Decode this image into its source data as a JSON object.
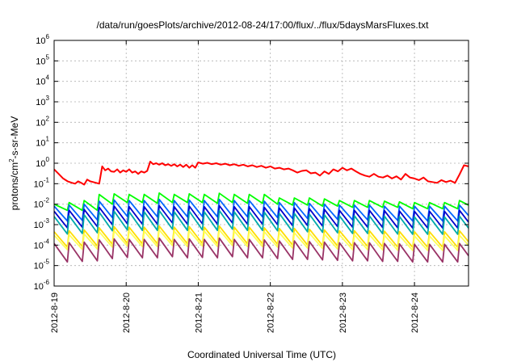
{
  "chart_data": {
    "type": "line",
    "title": "/data/run/goesPlots/archive/2012-08-24/17:00/flux/../flux/5daysMarsFluxes.txt",
    "xlabel": "Coordinated Universal Time (UTC)",
    "ylabel": "protons/cm2-s-sr-MeV",
    "ylabel_parts": {
      "pre": "protons/cm",
      "sup": "2",
      "post": "-s-sr-MeV"
    },
    "y_scale": "log",
    "ylim": [
      1e-06,
      1000000.0
    ],
    "y_ticks": [
      {
        "exp": -6,
        "base": "10",
        "sup": "-6"
      },
      {
        "exp": -5,
        "base": "10",
        "sup": "-5"
      },
      {
        "exp": -4,
        "base": "10",
        "sup": "-4"
      },
      {
        "exp": -3,
        "base": "10",
        "sup": "-3"
      },
      {
        "exp": -2,
        "base": "10",
        "sup": "-2"
      },
      {
        "exp": -1,
        "base": "10",
        "sup": "-1"
      },
      {
        "exp": 0,
        "base": "10",
        "sup": "0"
      },
      {
        "exp": 1,
        "base": "10",
        "sup": "1"
      },
      {
        "exp": 2,
        "base": "10",
        "sup": "2"
      },
      {
        "exp": 3,
        "base": "10",
        "sup": "3"
      },
      {
        "exp": 4,
        "base": "10",
        "sup": "4"
      },
      {
        "exp": 5,
        "base": "10",
        "sup": "5"
      },
      {
        "exp": 6,
        "base": "10",
        "sup": "6"
      }
    ],
    "xlim": [
      "2012-08-19T00:00",
      "2012-08-24T18:00"
    ],
    "x_ticks": [
      "2012-8-19",
      "2012-8-20",
      "2012-8-21",
      "2012-8-22",
      "2012-8-23",
      "2012-8-24"
    ],
    "grid": true,
    "legend": "none",
    "series": [
      {
        "color": "#ff0000",
        "sawtooth": false,
        "times": [
          "2012-08-19T00:00",
          "2012-08-19T01:30",
          "2012-08-19T03:00",
          "2012-08-19T04:30",
          "2012-08-19T06:00",
          "2012-08-19T07:00",
          "2012-08-19T08:00",
          "2012-08-19T09:00",
          "2012-08-19T10:00",
          "2012-08-19T11:00",
          "2012-08-19T12:00",
          "2012-08-19T13:00",
          "2012-08-19T14:00",
          "2012-08-19T15:00",
          "2012-08-19T16:00",
          "2012-08-19T17:00",
          "2012-08-19T18:00",
          "2012-08-19T19:00",
          "2012-08-19T20:00",
          "2012-08-19T21:00",
          "2012-08-19T22:00",
          "2012-08-19T23:00",
          "2012-08-20T00:00",
          "2012-08-20T01:00",
          "2012-08-20T02:00",
          "2012-08-20T03:00",
          "2012-08-20T04:00",
          "2012-08-20T05:00",
          "2012-08-20T06:00",
          "2012-08-20T07:00",
          "2012-08-20T08:00",
          "2012-08-20T09:00",
          "2012-08-20T10:00",
          "2012-08-20T11:00",
          "2012-08-20T12:00",
          "2012-08-20T13:00",
          "2012-08-20T14:00",
          "2012-08-20T15:00",
          "2012-08-20T16:00",
          "2012-08-20T17:00",
          "2012-08-20T18:00",
          "2012-08-20T19:00",
          "2012-08-20T20:00",
          "2012-08-20T21:00",
          "2012-08-20T22:00",
          "2012-08-20T23:00",
          "2012-08-21T00:00",
          "2012-08-21T01:30",
          "2012-08-21T03:00",
          "2012-08-21T04:30",
          "2012-08-21T06:00",
          "2012-08-21T07:30",
          "2012-08-21T09:00",
          "2012-08-21T10:30",
          "2012-08-21T12:00",
          "2012-08-21T13:30",
          "2012-08-21T15:00",
          "2012-08-21T16:30",
          "2012-08-21T18:00",
          "2012-08-21T19:30",
          "2012-08-21T21:00",
          "2012-08-21T22:30",
          "2012-08-22T00:00",
          "2012-08-22T01:30",
          "2012-08-22T03:00",
          "2012-08-22T04:30",
          "2012-08-22T06:00",
          "2012-08-22T07:30",
          "2012-08-22T09:00",
          "2012-08-22T10:30",
          "2012-08-22T12:00",
          "2012-08-22T13:30",
          "2012-08-22T15:00",
          "2012-08-22T16:30",
          "2012-08-22T18:00",
          "2012-08-22T19:30",
          "2012-08-22T21:00",
          "2012-08-22T22:30",
          "2012-08-23T00:00",
          "2012-08-23T01:30",
          "2012-08-23T03:00",
          "2012-08-23T04:30",
          "2012-08-23T06:00",
          "2012-08-23T07:30",
          "2012-08-23T09:00",
          "2012-08-23T10:30",
          "2012-08-23T12:00",
          "2012-08-23T13:30",
          "2012-08-23T15:00",
          "2012-08-23T16:30",
          "2012-08-23T18:00",
          "2012-08-23T19:30",
          "2012-08-23T21:00",
          "2012-08-23T22:30",
          "2012-08-24T00:00",
          "2012-08-24T01:30",
          "2012-08-24T03:00",
          "2012-08-24T04:30",
          "2012-08-24T06:00",
          "2012-08-24T07:30",
          "2012-08-24T09:00",
          "2012-08-24T10:30",
          "2012-08-24T12:00",
          "2012-08-24T13:30",
          "2012-08-24T15:00",
          "2012-08-24T16:30",
          "2012-08-24T18:00"
        ],
        "values": [
          0.5,
          0.3,
          0.18,
          0.13,
          0.11,
          0.1,
          0.13,
          0.11,
          0.09,
          0.16,
          0.13,
          0.12,
          0.11,
          0.1,
          0.7,
          0.45,
          0.55,
          0.4,
          0.38,
          0.5,
          0.35,
          0.45,
          0.38,
          0.5,
          0.35,
          0.4,
          0.3,
          0.4,
          0.35,
          0.42,
          1.2,
          0.9,
          1.0,
          0.85,
          1.0,
          0.8,
          0.9,
          0.75,
          0.9,
          0.7,
          0.85,
          0.65,
          0.85,
          0.6,
          0.8,
          0.6,
          1.1,
          0.95,
          1.05,
          0.9,
          1.0,
          0.85,
          0.95,
          0.8,
          0.9,
          0.75,
          0.85,
          0.7,
          0.8,
          0.65,
          0.75,
          0.6,
          0.7,
          0.55,
          0.6,
          0.5,
          0.55,
          0.45,
          0.35,
          0.42,
          0.45,
          0.32,
          0.35,
          0.25,
          0.4,
          0.3,
          0.5,
          0.4,
          0.6,
          0.45,
          0.55,
          0.4,
          0.3,
          0.25,
          0.22,
          0.3,
          0.22,
          0.2,
          0.25,
          0.18,
          0.23,
          0.16,
          0.3,
          0.2,
          0.18,
          0.15,
          0.2,
          0.13,
          0.12,
          0.11,
          0.15,
          0.12,
          0.14,
          0.11,
          0.28,
          0.8,
          0.7
        ]
      },
      {
        "color": "#00ff00",
        "sawtooth": true,
        "peaks": [
          0.01,
          0.012,
          0.015,
          0.03,
          0.032,
          0.03,
          0.03,
          0.035,
          0.03,
          0.032,
          0.03,
          0.034,
          0.03,
          0.03,
          0.03,
          0.02,
          0.02,
          0.02,
          0.018,
          0.015,
          0.015,
          0.015,
          0.014,
          0.013,
          0.012,
          0.012,
          0.012,
          0.015,
          0.02
        ],
        "troughs": [
          0.005,
          0.005,
          0.005,
          0.01,
          0.012,
          0.012,
          0.011,
          0.012,
          0.012,
          0.012,
          0.011,
          0.012,
          0.011,
          0.011,
          0.01,
          0.009,
          0.009,
          0.008,
          0.008,
          0.007,
          0.007,
          0.007,
          0.007,
          0.006,
          0.006,
          0.006,
          0.006,
          0.007,
          0.008
        ]
      },
      {
        "color": "#0066ff",
        "sawtooth": true,
        "peaks": [
          0.008,
          0.009,
          0.01,
          0.014,
          0.016,
          0.015,
          0.015,
          0.017,
          0.015,
          0.016,
          0.015,
          0.017,
          0.015,
          0.015,
          0.014,
          0.012,
          0.012,
          0.011,
          0.01,
          0.009,
          0.009,
          0.009,
          0.008,
          0.008,
          0.008,
          0.008,
          0.008,
          0.009,
          0.01
        ],
        "troughs": [
          0.0015,
          0.0016,
          0.0017,
          0.0022,
          0.0025,
          0.0024,
          0.0024,
          0.0026,
          0.0024,
          0.0025,
          0.0024,
          0.0026,
          0.0024,
          0.0024,
          0.0022,
          0.002,
          0.002,
          0.0019,
          0.0018,
          0.0017,
          0.0017,
          0.0016,
          0.0016,
          0.0015,
          0.0015,
          0.0015,
          0.0015,
          0.0016,
          0.0018
        ]
      },
      {
        "color": "#0000cc",
        "sawtooth": true,
        "peaks": [
          0.0045,
          0.005,
          0.0055,
          0.007,
          0.008,
          0.0075,
          0.0075,
          0.0085,
          0.0075,
          0.008,
          0.0075,
          0.0085,
          0.0075,
          0.0075,
          0.007,
          0.0065,
          0.0065,
          0.006,
          0.0055,
          0.005,
          0.005,
          0.005,
          0.0048,
          0.0046,
          0.0045,
          0.0045,
          0.0045,
          0.005,
          0.0055
        ],
        "troughs": [
          0.0007,
          0.00075,
          0.0008,
          0.001,
          0.0011,
          0.00105,
          0.00105,
          0.0012,
          0.00105,
          0.0011,
          0.00105,
          0.0012,
          0.00105,
          0.00105,
          0.001,
          0.0009,
          0.0009,
          0.00085,
          0.0008,
          0.00075,
          0.00075,
          0.00072,
          0.0007,
          0.00068,
          0.00068,
          0.00068,
          0.00068,
          0.00072,
          0.0008
        ]
      },
      {
        "color": "#00aaaa",
        "sawtooth": true,
        "peaks": [
          0.0025,
          0.0027,
          0.003,
          0.004,
          0.0045,
          0.0042,
          0.0042,
          0.0048,
          0.0042,
          0.0045,
          0.0042,
          0.0048,
          0.0042,
          0.0042,
          0.004,
          0.0035,
          0.0035,
          0.0032,
          0.003,
          0.0027,
          0.0027,
          0.0027,
          0.0026,
          0.0025,
          0.0024,
          0.0024,
          0.0024,
          0.0026,
          0.003
        ],
        "troughs": [
          0.00035,
          0.00037,
          0.0004,
          0.0005,
          0.00055,
          0.00052,
          0.00052,
          0.0006,
          0.00052,
          0.00055,
          0.00052,
          0.0006,
          0.00052,
          0.00052,
          0.0005,
          0.00045,
          0.00045,
          0.00042,
          0.0004,
          0.00037,
          0.00037,
          0.00036,
          0.00035,
          0.00034,
          0.00034,
          0.00034,
          0.00034,
          0.00036,
          0.0004
        ]
      },
      {
        "color": "#ffdd00",
        "sawtooth": true,
        "peaks": [
          0.00045,
          0.0005,
          0.00055,
          0.0007,
          0.0008,
          0.00075,
          0.00075,
          0.00085,
          0.00075,
          0.0008,
          0.00075,
          0.00085,
          0.00075,
          0.00075,
          0.0007,
          0.00065,
          0.00065,
          0.0006,
          0.00055,
          0.0005,
          0.0005,
          0.0005,
          0.00048,
          0.00046,
          0.00045,
          0.00045,
          0.00045,
          0.0005,
          0.00055
        ],
        "troughs": [
          8e-05,
          8.5e-05,
          9e-05,
          0.00011,
          0.00012,
          0.000115,
          0.000115,
          0.00013,
          0.000115,
          0.00012,
          0.000115,
          0.00013,
          0.000115,
          0.000115,
          0.00011,
          0.0001,
          0.0001,
          9.5e-05,
          9e-05,
          8.5e-05,
          8.5e-05,
          8.2e-05,
          8e-05,
          7.8e-05,
          7.8e-05,
          7.8e-05,
          7.8e-05,
          8.2e-05,
          9e-05
        ]
      },
      {
        "color": "#ffff55",
        "sawtooth": true,
        "peaks": [
          0.0003,
          0.00032,
          0.00035,
          0.00045,
          0.0005,
          0.00048,
          0.00048,
          0.00055,
          0.00048,
          0.0005,
          0.00048,
          0.00055,
          0.00048,
          0.00048,
          0.00045,
          0.0004,
          0.0004,
          0.00038,
          0.00035,
          0.00032,
          0.00032,
          0.00032,
          0.0003,
          0.00029,
          0.00028,
          0.00028,
          0.00028,
          0.0003,
          0.00035
        ],
        "troughs": [
          6e-05,
          6.2e-05,
          6.5e-05,
          8e-05,
          9e-05,
          8.5e-05,
          8.5e-05,
          9.5e-05,
          8.5e-05,
          9e-05,
          8.5e-05,
          9.5e-05,
          8.5e-05,
          8.5e-05,
          8e-05,
          7.2e-05,
          7.2e-05,
          6.8e-05,
          6.5e-05,
          6e-05,
          6e-05,
          5.8e-05,
          5.6e-05,
          5.5e-05,
          5.5e-05,
          5.5e-05,
          5.5e-05,
          5.8e-05,
          6.5e-05
        ]
      },
      {
        "color": "#993366",
        "sawtooth": true,
        "peaks": [
          0.00012,
          0.00013,
          0.00014,
          0.00018,
          0.0002,
          0.00019,
          0.00019,
          0.00022,
          0.00019,
          0.0002,
          0.00019,
          0.00022,
          0.00019,
          0.00019,
          0.00018,
          0.00016,
          0.00016,
          0.00015,
          0.00014,
          0.00013,
          0.00013,
          0.00013,
          0.00012,
          0.000115,
          0.00011,
          0.00011,
          0.00011,
          0.00012,
          0.00014
        ],
        "troughs": [
          1.5e-05,
          1.6e-05,
          1.7e-05,
          2.2e-05,
          2.5e-05,
          2.4e-05,
          2.4e-05,
          2.7e-05,
          2.4e-05,
          2.5e-05,
          2.4e-05,
          2.7e-05,
          2.4e-05,
          2.4e-05,
          2.2e-05,
          2e-05,
          2e-05,
          1.9e-05,
          1.8e-05,
          1.7e-05,
          1.7e-05,
          1.6e-05,
          1.6e-05,
          1.5e-05,
          1.5e-05,
          1.5e-05,
          1.5e-05,
          1.6e-05,
          1.8e-05
        ]
      }
    ]
  }
}
